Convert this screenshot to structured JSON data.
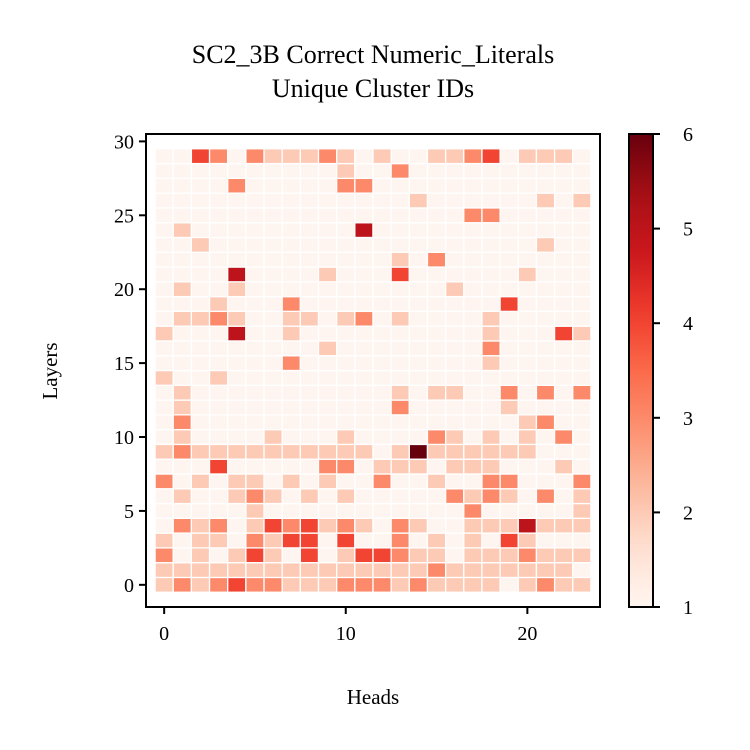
{
  "chart_data": {
    "type": "heatmap",
    "title": "SC2_3B Correct Numeric_Literals",
    "subtitle": "Unique Cluster IDs",
    "xlabel": "Heads",
    "ylabel": "Layers",
    "xticks": [
      0,
      10,
      20
    ],
    "yticks": [
      0,
      5,
      10,
      15,
      20,
      25,
      30
    ],
    "xlim": [
      -1,
      24
    ],
    "ylim": [
      -1.5,
      30.5
    ],
    "n_heads": 24,
    "n_layers": 30,
    "colormap": "Reds",
    "color_range": [
      1,
      6
    ],
    "colorbar_ticks": [
      1,
      2,
      3,
      4,
      5,
      6
    ],
    "colors": {
      "low": "#fff5f0",
      "high": "#67000d",
      "cell_gap": "#ffffff"
    },
    "values": [
      [
        2,
        3,
        2,
        3,
        4,
        3,
        3,
        2,
        2,
        2,
        3,
        3,
        3,
        2,
        3,
        2,
        2,
        2,
        2,
        1,
        2,
        3,
        2,
        2
      ],
      [
        2,
        2,
        2,
        2,
        2,
        2,
        2,
        2,
        2,
        2,
        2,
        2,
        2,
        2,
        2,
        3,
        2,
        2,
        2,
        2,
        2,
        2,
        2,
        1
      ],
      [
        3,
        1,
        2,
        1,
        2,
        4,
        2,
        1,
        4,
        1,
        2,
        4,
        4,
        3,
        2,
        2,
        1,
        2,
        2,
        2,
        3,
        2,
        2,
        2
      ],
      [
        2,
        1,
        2,
        2,
        1,
        3,
        2,
        4,
        4,
        1,
        4,
        1,
        1,
        3,
        1,
        2,
        1,
        2,
        1,
        4,
        2,
        1,
        1,
        1
      ],
      [
        1,
        3,
        2,
        3,
        1,
        2,
        4,
        3,
        4,
        2,
        3,
        2,
        1,
        3,
        2,
        1,
        1,
        2,
        2,
        2,
        5,
        2,
        2,
        2
      ],
      [
        1,
        1,
        1,
        1,
        1,
        2,
        1,
        1,
        1,
        1,
        1,
        1,
        1,
        1,
        1,
        1,
        1,
        3,
        1,
        1,
        1,
        1,
        1,
        2
      ],
      [
        1,
        2,
        1,
        1,
        2,
        3,
        2,
        1,
        2,
        1,
        2,
        1,
        1,
        1,
        1,
        1,
        3,
        2,
        3,
        2,
        1,
        3,
        1,
        2
      ],
      [
        3,
        1,
        2,
        1,
        2,
        2,
        1,
        2,
        1,
        2,
        1,
        1,
        3,
        1,
        1,
        2,
        1,
        1,
        3,
        3,
        1,
        1,
        1,
        3
      ],
      [
        1,
        1,
        1,
        4,
        1,
        1,
        1,
        1,
        1,
        3,
        3,
        1,
        2,
        2,
        2,
        1,
        2,
        2,
        2,
        1,
        1,
        1,
        2,
        1
      ],
      [
        2,
        3,
        2,
        2,
        2,
        2,
        2,
        2,
        2,
        2,
        2,
        2,
        1,
        2,
        6,
        2,
        2,
        2,
        2,
        2,
        2,
        1,
        1,
        1
      ],
      [
        1,
        2,
        1,
        1,
        1,
        1,
        2,
        1,
        1,
        1,
        2,
        1,
        1,
        1,
        1,
        3,
        2,
        1,
        2,
        1,
        2,
        1,
        3,
        1
      ],
      [
        1,
        3,
        1,
        1,
        1,
        1,
        1,
        1,
        1,
        1,
        1,
        1,
        1,
        1,
        1,
        1,
        1,
        1,
        1,
        1,
        2,
        3,
        1,
        1
      ],
      [
        1,
        2,
        1,
        1,
        1,
        1,
        1,
        1,
        1,
        1,
        1,
        1,
        1,
        3,
        1,
        1,
        1,
        1,
        1,
        2,
        1,
        1,
        1,
        1
      ],
      [
        1,
        2,
        1,
        1,
        1,
        1,
        1,
        1,
        1,
        1,
        1,
        1,
        1,
        2,
        1,
        2,
        2,
        1,
        1,
        3,
        1,
        3,
        1,
        3
      ],
      [
        2,
        1,
        1,
        2,
        1,
        1,
        1,
        1,
        1,
        1,
        1,
        1,
        1,
        1,
        1,
        1,
        1,
        1,
        1,
        1,
        1,
        1,
        1,
        1
      ],
      [
        1,
        1,
        1,
        1,
        1,
        1,
        1,
        3,
        1,
        1,
        1,
        1,
        1,
        1,
        1,
        1,
        1,
        1,
        2,
        1,
        1,
        1,
        1,
        1
      ],
      [
        1,
        1,
        1,
        1,
        1,
        1,
        1,
        1,
        1,
        2,
        1,
        1,
        1,
        1,
        1,
        1,
        1,
        1,
        3,
        1,
        1,
        1,
        1,
        1
      ],
      [
        2,
        1,
        1,
        1,
        5,
        1,
        1,
        2,
        1,
        1,
        1,
        1,
        1,
        1,
        1,
        1,
        1,
        1,
        2,
        1,
        1,
        1,
        4,
        2
      ],
      [
        1,
        2,
        2,
        3,
        2,
        1,
        1,
        2,
        2,
        1,
        2,
        3,
        1,
        2,
        1,
        1,
        1,
        1,
        2,
        1,
        1,
        1,
        1,
        1
      ],
      [
        1,
        1,
        1,
        2,
        1,
        1,
        1,
        3,
        1,
        1,
        1,
        1,
        1,
        1,
        1,
        1,
        1,
        1,
        1,
        4,
        1,
        1,
        1,
        1
      ],
      [
        1,
        2,
        1,
        1,
        2,
        1,
        1,
        1,
        1,
        1,
        1,
        1,
        1,
        1,
        1,
        1,
        2,
        1,
        1,
        1,
        1,
        1,
        1,
        1
      ],
      [
        1,
        1,
        1,
        1,
        5,
        1,
        1,
        1,
        1,
        2,
        1,
        1,
        1,
        4,
        1,
        1,
        1,
        1,
        1,
        1,
        2,
        1,
        1,
        1
      ],
      [
        1,
        1,
        1,
        1,
        1,
        1,
        1,
        1,
        1,
        1,
        1,
        1,
        1,
        2,
        1,
        3,
        1,
        1,
        1,
        1,
        1,
        1,
        1,
        1
      ],
      [
        1,
        1,
        2,
        1,
        1,
        1,
        1,
        1,
        1,
        1,
        1,
        1,
        1,
        1,
        1,
        1,
        1,
        1,
        1,
        1,
        1,
        2,
        1,
        1
      ],
      [
        1,
        2,
        1,
        1,
        1,
        1,
        1,
        1,
        1,
        1,
        1,
        5,
        1,
        1,
        1,
        1,
        1,
        1,
        1,
        1,
        1,
        1,
        1,
        1
      ],
      [
        1,
        1,
        1,
        1,
        1,
        1,
        1,
        1,
        1,
        1,
        1,
        1,
        1,
        1,
        1,
        1,
        1,
        3,
        3,
        1,
        1,
        1,
        1,
        1
      ],
      [
        1,
        1,
        1,
        1,
        1,
        1,
        1,
        1,
        1,
        1,
        1,
        1,
        1,
        1,
        2,
        1,
        1,
        1,
        1,
        1,
        1,
        2,
        1,
        2
      ],
      [
        1,
        1,
        1,
        1,
        3,
        1,
        1,
        1,
        1,
        1,
        3,
        3,
        1,
        1,
        1,
        1,
        1,
        1,
        1,
        1,
        1,
        1,
        1,
        1
      ],
      [
        1,
        1,
        1,
        1,
        1,
        1,
        1,
        1,
        1,
        1,
        2,
        1,
        1,
        3,
        1,
        1,
        1,
        1,
        1,
        1,
        1,
        1,
        1,
        1
      ],
      [
        1,
        1,
        4,
        3,
        1,
        3,
        2,
        2,
        2,
        3,
        2,
        1,
        2,
        1,
        1,
        2,
        2,
        3,
        4,
        1,
        2,
        2,
        2,
        1
      ]
    ]
  }
}
